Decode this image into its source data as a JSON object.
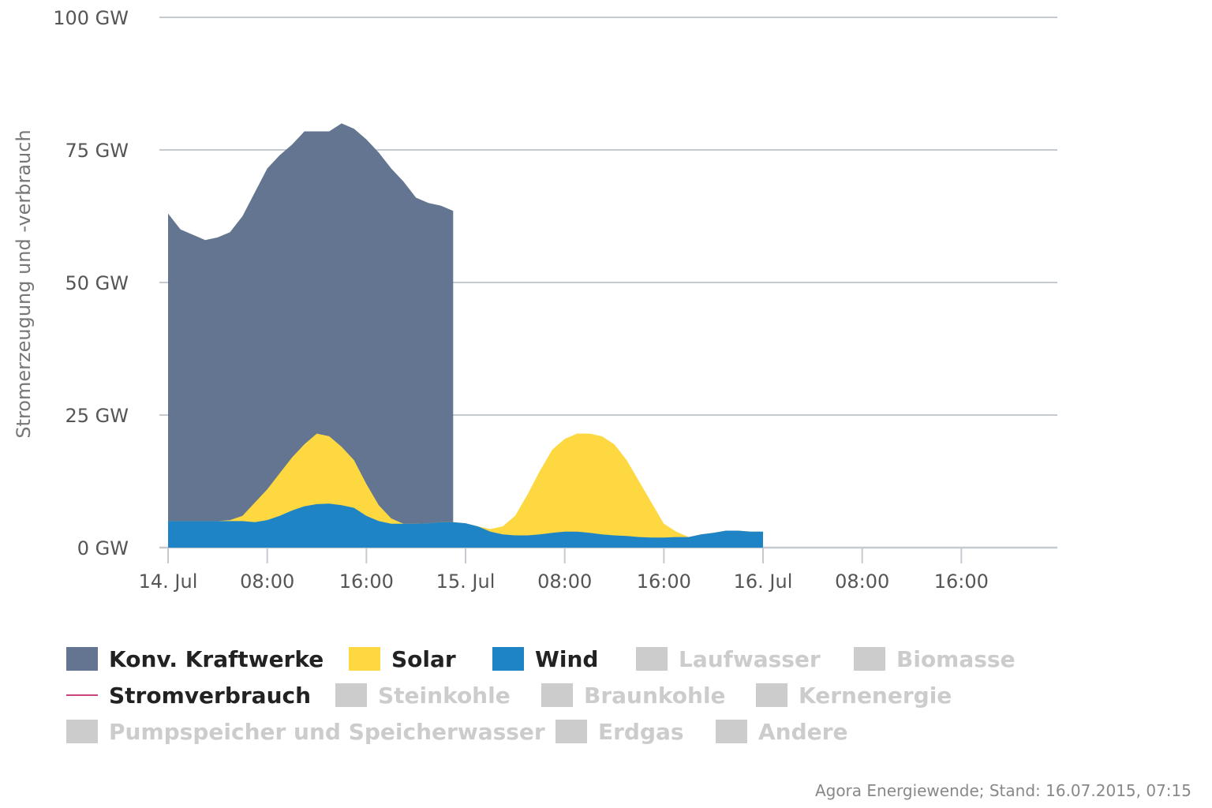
{
  "chart_data": {
    "type": "area",
    "title": "",
    "ylabel": "Stromerzeugung und -verbrauch",
    "ylim": [
      0,
      100
    ],
    "y_ticks": [
      "0 GW",
      "25 GW",
      "50 GW",
      "75 GW",
      "100 GW"
    ],
    "y_tick_values": [
      0,
      25,
      50,
      75,
      100
    ],
    "x_tick_labels": [
      "14. Jul",
      "08:00",
      "16:00",
      "15. Jul",
      "08:00",
      "16:00",
      "16. Jul",
      "08:00",
      "16:00"
    ],
    "x_tick_hours": [
      0,
      8,
      16,
      24,
      32,
      40,
      48,
      56,
      64
    ],
    "xlim_hours": [
      0,
      72
    ],
    "x_unit": "hours since 14. Jul 00:00",
    "series": [
      {
        "name": "Konv. Kraftwerke",
        "color": "#637591",
        "points": [
          [
            0,
            63
          ],
          [
            1,
            60
          ],
          [
            2,
            59
          ],
          [
            3,
            58
          ],
          [
            4,
            58.5
          ],
          [
            5,
            59.5
          ],
          [
            6,
            62.5
          ],
          [
            7,
            67
          ],
          [
            8,
            71.5
          ],
          [
            9,
            74
          ],
          [
            10,
            76
          ],
          [
            11,
            78.5
          ],
          [
            12,
            78.5
          ],
          [
            13,
            78.5
          ],
          [
            14,
            80
          ],
          [
            15,
            79
          ],
          [
            16,
            77
          ],
          [
            17,
            74.5
          ],
          [
            18,
            71.5
          ],
          [
            19,
            69
          ],
          [
            20,
            66
          ],
          [
            21,
            65
          ],
          [
            22,
            64.5
          ],
          [
            23,
            63.5
          ]
        ]
      },
      {
        "name": "Solar",
        "color": "#FDD840",
        "points": [
          [
            0,
            5
          ],
          [
            1,
            5
          ],
          [
            2,
            5
          ],
          [
            3,
            5
          ],
          [
            4,
            5
          ],
          [
            5,
            5.2
          ],
          [
            6,
            6
          ],
          [
            7,
            8.5
          ],
          [
            8,
            11
          ],
          [
            9,
            14
          ],
          [
            10,
            17
          ],
          [
            11,
            19.5
          ],
          [
            12,
            21.5
          ],
          [
            13,
            21
          ],
          [
            14,
            19
          ],
          [
            15,
            16.5
          ],
          [
            16,
            12
          ],
          [
            17,
            8
          ],
          [
            18,
            5.5
          ],
          [
            19,
            4.5
          ],
          [
            20,
            4.5
          ],
          [
            21,
            4.6
          ],
          [
            22,
            4.8
          ],
          [
            23,
            4.8
          ],
          [
            24,
            4.6
          ],
          [
            25,
            4
          ],
          [
            26,
            3.5
          ],
          [
            27,
            4
          ],
          [
            28,
            6
          ],
          [
            29,
            10
          ],
          [
            30,
            14.5
          ],
          [
            31,
            18.5
          ],
          [
            32,
            20.5
          ],
          [
            33,
            21.5
          ],
          [
            34,
            21.5
          ],
          [
            35,
            21
          ],
          [
            36,
            19.5
          ],
          [
            37,
            16.5
          ],
          [
            38,
            12.5
          ],
          [
            39,
            8.5
          ],
          [
            40,
            4.5
          ],
          [
            41,
            3
          ],
          [
            42,
            2
          ],
          [
            43,
            2.5
          ],
          [
            44,
            2.8
          ],
          [
            45,
            3.2
          ],
          [
            46,
            3.2
          ],
          [
            47,
            3
          ],
          [
            48,
            3
          ]
        ]
      },
      {
        "name": "Wind",
        "color": "#1F84C6",
        "points": [
          [
            0,
            5
          ],
          [
            1,
            5
          ],
          [
            2,
            5
          ],
          [
            3,
            5
          ],
          [
            4,
            5
          ],
          [
            5,
            5
          ],
          [
            6,
            5
          ],
          [
            7,
            4.8
          ],
          [
            8,
            5.2
          ],
          [
            9,
            6
          ],
          [
            10,
            7
          ],
          [
            11,
            7.8
          ],
          [
            12,
            8.2
          ],
          [
            13,
            8.3
          ],
          [
            14,
            8
          ],
          [
            15,
            7.5
          ],
          [
            16,
            6
          ],
          [
            17,
            5
          ],
          [
            18,
            4.5
          ],
          [
            19,
            4.5
          ],
          [
            20,
            4.5
          ],
          [
            21,
            4.6
          ],
          [
            22,
            4.8
          ],
          [
            23,
            4.8
          ],
          [
            24,
            4.6
          ],
          [
            25,
            4
          ],
          [
            26,
            3
          ],
          [
            27,
            2.5
          ],
          [
            28,
            2.3
          ],
          [
            29,
            2.3
          ],
          [
            30,
            2.5
          ],
          [
            31,
            2.8
          ],
          [
            32,
            3
          ],
          [
            33,
            3
          ],
          [
            34,
            2.8
          ],
          [
            35,
            2.5
          ],
          [
            36,
            2.3
          ],
          [
            37,
            2.2
          ],
          [
            38,
            2
          ],
          [
            39,
            1.9
          ],
          [
            40,
            1.9
          ],
          [
            41,
            2
          ],
          [
            42,
            2
          ],
          [
            43,
            2.5
          ],
          [
            44,
            2.8
          ],
          [
            45,
            3.2
          ],
          [
            46,
            3.2
          ],
          [
            47,
            3
          ],
          [
            48,
            3
          ]
        ]
      }
    ],
    "legend_position": "bottom",
    "grid": true
  },
  "legend": {
    "row1": [
      {
        "label": "Konv. Kraftwerke",
        "color": "#637591",
        "active": true,
        "kind": "box"
      },
      {
        "label": "Solar",
        "color": "#FDD840",
        "active": true,
        "kind": "box"
      },
      {
        "label": "Wind",
        "color": "#1F84C6",
        "active": true,
        "kind": "box"
      },
      {
        "label": "Laufwasser",
        "color": "#CCCCCC",
        "active": false,
        "kind": "box"
      },
      {
        "label": "Biomasse",
        "color": "#CCCCCC",
        "active": false,
        "kind": "box"
      }
    ],
    "row2": [
      {
        "label": "Stromverbrauch",
        "color": "#C8447A",
        "active": true,
        "kind": "line"
      },
      {
        "label": "Steinkohle",
        "color": "#CCCCCC",
        "active": false,
        "kind": "box"
      },
      {
        "label": "Braunkohle",
        "color": "#CCCCCC",
        "active": false,
        "kind": "box"
      },
      {
        "label": "Kernenergie",
        "color": "#CCCCCC",
        "active": false,
        "kind": "box"
      }
    ],
    "row3": [
      {
        "label": "Pumpspeicher und Speicherwasser",
        "color": "#CCCCCC",
        "active": false,
        "kind": "box"
      },
      {
        "label": "Erdgas",
        "color": "#CCCCCC",
        "active": false,
        "kind": "box"
      },
      {
        "label": "Andere",
        "color": "#CCCCCC",
        "active": false,
        "kind": "box"
      }
    ]
  },
  "colors": {
    "active_text": "#222222",
    "inactive_text": "#CCCCCC",
    "grid": "#C5CAD1",
    "axis": "#C5CAD1"
  },
  "credit": "Agora Energiewende; Stand: 16.07.2015, 07:15"
}
